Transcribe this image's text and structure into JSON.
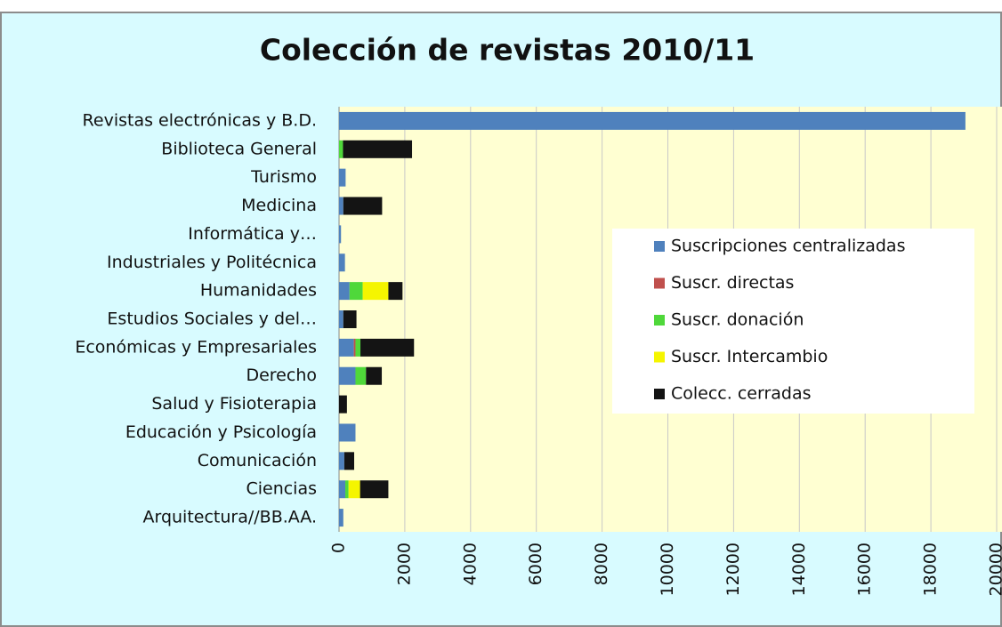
{
  "chart_data": {
    "type": "stacked-bar-horizontal",
    "title": "Colección de revistas 2010/11",
    "categories": [
      "Revistas electrónicas y B.D.",
      "Biblioteca General",
      "Turismo",
      "Medicina",
      "Informática y…",
      "Industriales y Politécnica",
      "Humanidades",
      "Estudios Sociales y del…",
      "Económicas y Empresariales",
      "Derecho",
      "Salud y Fisioterapia",
      "Educación y Psicología",
      "Comunicación",
      "Ciencias",
      "Arquitectura//BB.AA."
    ],
    "series": [
      {
        "name": "Suscripciones centralizadas",
        "color": "#4f81bd",
        "values": [
          19050,
          0,
          200,
          130,
          60,
          180,
          320,
          130,
          450,
          500,
          0,
          500,
          160,
          190,
          130
        ]
      },
      {
        "name": "Suscr. directas",
        "color": "#c0504d",
        "values": [
          0,
          0,
          0,
          0,
          0,
          0,
          0,
          0,
          50,
          0,
          0,
          0,
          0,
          0,
          0
        ]
      },
      {
        "name": "Suscr. donación",
        "color": "#4fd83a",
        "values": [
          0,
          120,
          0,
          0,
          0,
          0,
          400,
          0,
          150,
          320,
          0,
          0,
          0,
          100,
          0
        ]
      },
      {
        "name": "Suscr. Intercambio",
        "color": "#f5f500",
        "values": [
          0,
          0,
          0,
          0,
          0,
          0,
          780,
          0,
          0,
          0,
          0,
          0,
          0,
          350,
          0
        ]
      },
      {
        "name": "Colecc. cerradas",
        "color": "#141414",
        "values": [
          0,
          2100,
          0,
          1180,
          0,
          0,
          430,
          400,
          1630,
          480,
          240,
          0,
          300,
          860,
          0
        ]
      }
    ],
    "xlim": [
      0,
      20000
    ],
    "xticks": [
      0,
      2000,
      4000,
      6000,
      8000,
      10000,
      12000,
      14000,
      16000,
      18000,
      20000
    ],
    "grid": true
  }
}
